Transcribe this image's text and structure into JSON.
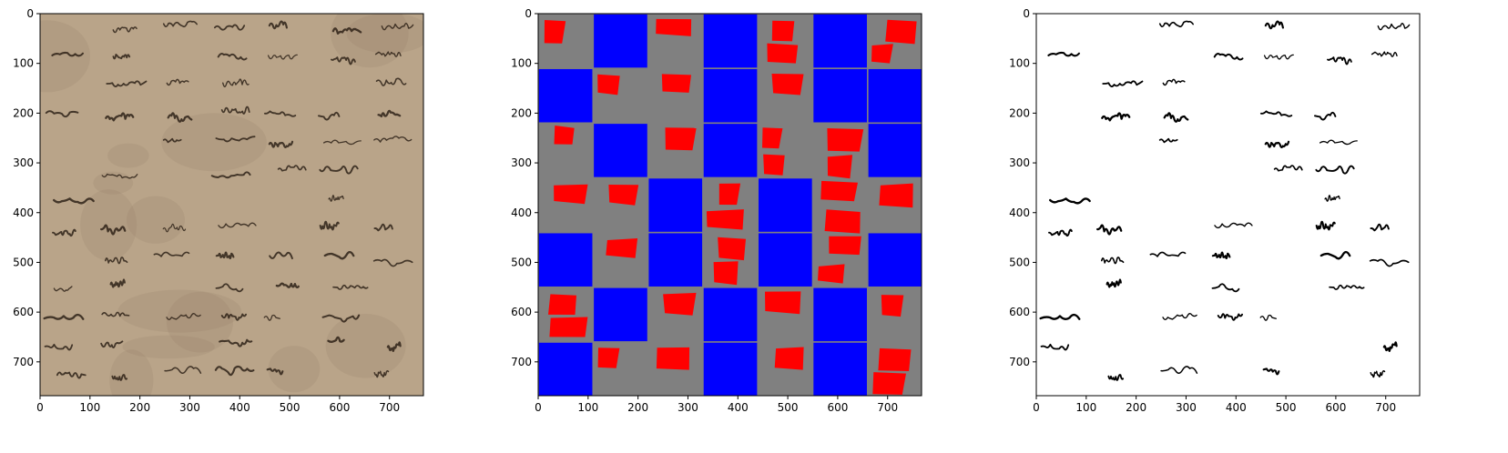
{
  "figure": {
    "panels": [
      {
        "name": "original-document-panel",
        "xlim": [
          0,
          768
        ],
        "ylim": [
          768,
          0
        ],
        "x_ticks": [
          0,
          100,
          200,
          300,
          400,
          500,
          600,
          700
        ],
        "y_ticks": [
          0,
          100,
          200,
          300,
          400,
          500,
          600,
          700
        ],
        "background_color": "#b9a489",
        "ink_color": "#2a1d14"
      },
      {
        "name": "patch-mask-panel",
        "xlim": [
          0,
          768
        ],
        "ylim": [
          768,
          0
        ],
        "x_ticks": [
          0,
          100,
          200,
          300,
          400,
          500,
          600,
          700
        ],
        "y_ticks": [
          0,
          100,
          200,
          300,
          400,
          500,
          600,
          700
        ],
        "background_color": "#808080",
        "patch_colors": {
          "blue": "#0000ff",
          "red": "#ff0000"
        }
      },
      {
        "name": "binarized-document-panel",
        "xlim": [
          0,
          768
        ],
        "ylim": [
          768,
          0
        ],
        "x_ticks": [
          0,
          100,
          200,
          300,
          400,
          500,
          600,
          700
        ],
        "y_ticks": [
          0,
          100,
          200,
          300,
          400,
          500,
          600,
          700
        ],
        "background_color": "#ffffff",
        "ink_color": "#000000"
      }
    ]
  }
}
